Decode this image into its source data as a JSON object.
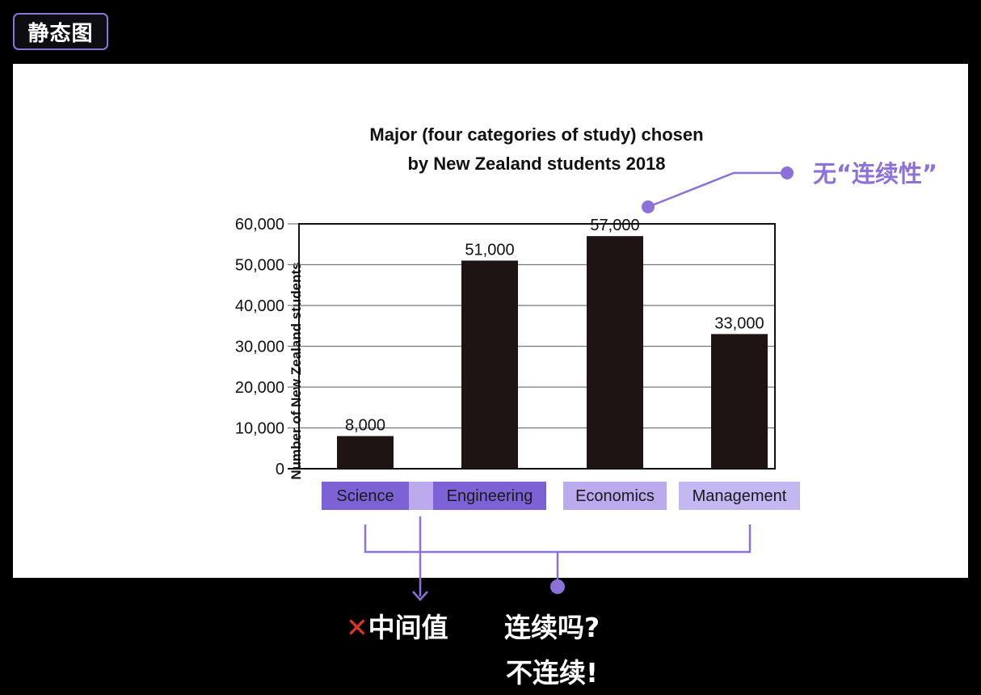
{
  "badge": {
    "label": "静态图"
  },
  "annotation_top": {
    "text": "无“连续性”"
  },
  "captions": {
    "x_mark": "✕",
    "median": "中间值",
    "continuous_question": "连续吗?",
    "not_continuous": "不连续!"
  },
  "colors": {
    "bar": "#1e1414",
    "accent": "#8c72d8",
    "label_dark": "#7d62d6",
    "label_light": "#bcaaef",
    "label_mid": "#c5b7f2",
    "x_mark": "#e0342f"
  },
  "chart_data": {
    "type": "bar",
    "title": "Major (four categories of study) chosen",
    "subtitle": "by New Zealand students 2018",
    "ylabel": "Number of New Zealand students",
    "xlabel": "",
    "categories": [
      "Science",
      "Engineering",
      "Economics",
      "Management"
    ],
    "values": [
      8000,
      51000,
      57000,
      33000
    ],
    "data_labels": [
      "8,000",
      "51,000",
      "57,000",
      "33,000"
    ],
    "yticks": [
      "0",
      "10,000",
      "20,000",
      "30,000",
      "40,000",
      "50,000",
      "60,000"
    ],
    "ylim": [
      0,
      60000
    ],
    "grid": true
  }
}
